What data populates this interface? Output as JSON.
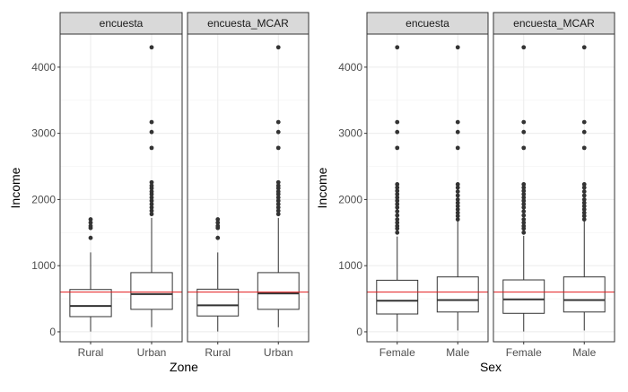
{
  "colors": {
    "panel_bg": "#ffffff",
    "panel_border": "#333333",
    "strip_bg": "#d9d9d9",
    "grid": "#ebebeb",
    "box_stroke": "#333333",
    "outlier": "#333333",
    "reference_line": "#e31a1c",
    "axis_text": "#4d4d4d",
    "title_text": "#000000"
  },
  "chart_data": [
    {
      "type": "boxplot",
      "facet_var": "dataset",
      "panels": [
        "encuesta",
        "encuesta_MCAR"
      ],
      "xlabel": "Zone",
      "ylabel": "Income",
      "categories": [
        "Rural",
        "Urban"
      ],
      "ylim": [
        -150,
        4500
      ],
      "yticks": [
        0,
        1000,
        2000,
        3000,
        4000
      ],
      "reference_line": 600,
      "grid": true,
      "boxes": [
        [
          {
            "category": "Rural",
            "whisker_low": 5,
            "q1": 230,
            "median": 390,
            "q3": 640,
            "whisker_high": 1200,
            "outliers": [
              1420,
              1570,
              1600,
              1650,
              1700
            ]
          },
          {
            "category": "Urban",
            "whisker_low": 70,
            "q1": 340,
            "median": 570,
            "q3": 895,
            "whisker_high": 1720,
            "outliers": [
              1780,
              1830,
              1880,
              1930,
              1980,
              2030,
              2080,
              2120,
              2170,
              2210,
              2260,
              2780,
              3020,
              3170,
              4300
            ]
          }
        ],
        [
          {
            "category": "Rural",
            "whisker_low": 5,
            "q1": 240,
            "median": 400,
            "q3": 645,
            "whisker_high": 1200,
            "outliers": [
              1420,
              1570,
              1600,
              1650,
              1700
            ]
          },
          {
            "category": "Urban",
            "whisker_low": 70,
            "q1": 340,
            "median": 580,
            "q3": 895,
            "whisker_high": 1720,
            "outliers": [
              1780,
              1830,
              1880,
              1930,
              1980,
              2030,
              2080,
              2120,
              2170,
              2210,
              2260,
              2780,
              3020,
              3170,
              4300
            ]
          }
        ]
      ]
    },
    {
      "type": "boxplot",
      "facet_var": "dataset",
      "panels": [
        "encuesta",
        "encuesta_MCAR"
      ],
      "xlabel": "Sex",
      "ylabel": "Income",
      "categories": [
        "Female",
        "Male"
      ],
      "ylim": [
        -150,
        4500
      ],
      "yticks": [
        0,
        1000,
        2000,
        3000,
        4000
      ],
      "reference_line": 600,
      "grid": true,
      "boxes": [
        [
          {
            "category": "Female",
            "whisker_low": 5,
            "q1": 270,
            "median": 470,
            "q3": 780,
            "whisker_high": 1440,
            "outliers": [
              1500,
              1560,
              1600,
              1650,
              1700,
              1760,
              1820,
              1880,
              1930,
              1980,
              2030,
              2080,
              2130,
              2180,
              2230,
              2780,
              3020,
              3170,
              4300
            ]
          },
          {
            "category": "Male",
            "whisker_low": 20,
            "q1": 300,
            "median": 480,
            "q3": 830,
            "whisker_high": 1680,
            "outliers": [
              1700,
              1750,
              1800,
              1850,
              1900,
              1950,
              2000,
              2060,
              2120,
              2180,
              2230,
              2780,
              3020,
              3170,
              4300
            ]
          }
        ],
        [
          {
            "category": "Female",
            "whisker_low": 5,
            "q1": 280,
            "median": 490,
            "q3": 785,
            "whisker_high": 1450,
            "outliers": [
              1500,
              1560,
              1600,
              1650,
              1700,
              1760,
              1820,
              1880,
              1930,
              1980,
              2030,
              2080,
              2130,
              2180,
              2230,
              2780,
              3020,
              3170,
              4300
            ]
          },
          {
            "category": "Male",
            "whisker_low": 20,
            "q1": 300,
            "median": 480,
            "q3": 830,
            "whisker_high": 1680,
            "outliers": [
              1700,
              1750,
              1800,
              1850,
              1900,
              1950,
              2000,
              2060,
              2120,
              2180,
              2230,
              2780,
              3020,
              3170,
              4300
            ]
          }
        ]
      ]
    }
  ]
}
